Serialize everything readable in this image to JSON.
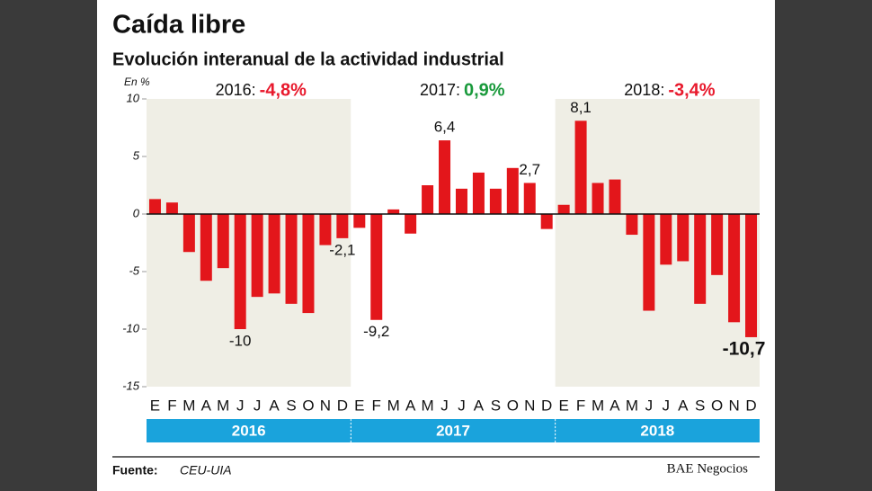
{
  "chart_data": {
    "type": "bar",
    "title": "Caída libre",
    "subtitle": "Evolución interanual de la actividad industrial",
    "unit_label": "En %",
    "year_summaries": [
      {
        "year": "2016:",
        "text": "-4,8%",
        "color": "#e8192c"
      },
      {
        "year": "2017:",
        "text": "0,9%",
        "color": "#1a9a3c"
      },
      {
        "year": "2018:",
        "text": "-3,4%",
        "color": "#e8192c"
      }
    ],
    "categories": [
      "E",
      "F",
      "M",
      "A",
      "M",
      "J",
      "J",
      "A",
      "S",
      "O",
      "N",
      "D",
      "E",
      "F",
      "M",
      "A",
      "M",
      "J",
      "J",
      "A",
      "S",
      "O",
      "N",
      "D",
      "E",
      "F",
      "M",
      "A",
      "M",
      "J",
      "J",
      "A",
      "S",
      "O",
      "N",
      "D"
    ],
    "years": [
      "2016",
      "2017",
      "2018"
    ],
    "values": [
      1.3,
      1.0,
      -3.3,
      -5.8,
      -4.7,
      -10,
      -7.2,
      -6.9,
      -7.8,
      -8.6,
      -2.7,
      -2.1,
      -1.2,
      -9.2,
      0.4,
      -1.7,
      2.5,
      6.4,
      2.2,
      3.6,
      2.2,
      4.0,
      2.7,
      -1.3,
      0.8,
      8.1,
      2.7,
      3.0,
      -1.8,
      -8.4,
      -4.4,
      -4.1,
      -7.8,
      -5.3,
      -9.4,
      -10.7
    ],
    "value_labels": [
      null,
      null,
      null,
      null,
      null,
      "-10",
      null,
      null,
      null,
      null,
      null,
      "-2,1",
      null,
      "-9,2",
      null,
      null,
      null,
      "6,4",
      null,
      null,
      null,
      null,
      "2,7",
      null,
      null,
      "8,1",
      null,
      null,
      null,
      null,
      null,
      null,
      null,
      null,
      null,
      "-10,7"
    ],
    "color": "#e3161b",
    "ylim": [
      -15,
      10
    ],
    "yticks": [
      10,
      5,
      0,
      -5,
      -10,
      -15
    ],
    "source_label": "Fuente:",
    "source": "CEU-UIA",
    "publisher": "BAE Negocios"
  }
}
